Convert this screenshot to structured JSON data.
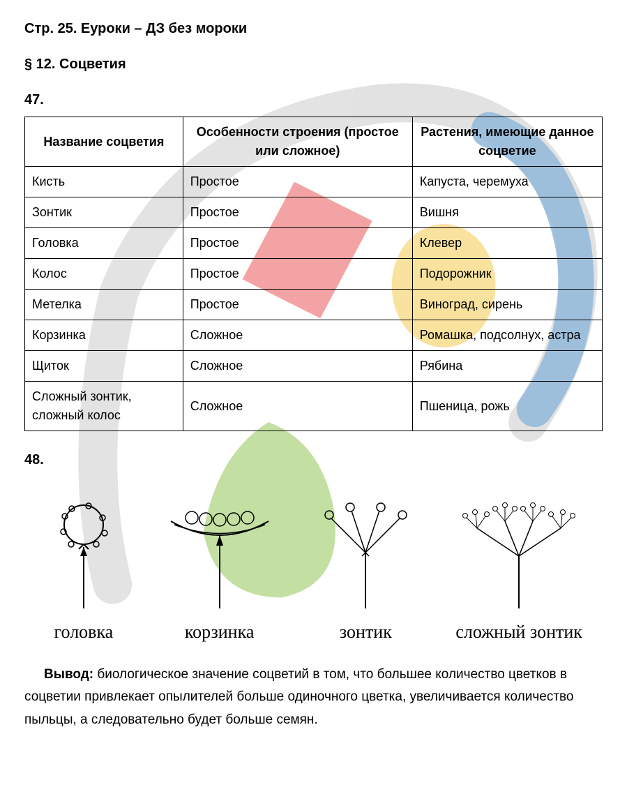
{
  "header": "Стр. 25. Еуроки – ДЗ без мороки",
  "section_title": "§ 12. Соцветия",
  "exercise_47": {
    "number": "47.",
    "table": {
      "columns": [
        "Название соцветия",
        "Особенности строения (простое или сложное)",
        "Растения, имеющие данное соцветие"
      ],
      "rows": [
        [
          "Кисть",
          "Простое",
          "Капуста, черемуха"
        ],
        [
          "Зонтик",
          "Простое",
          "Вишня"
        ],
        [
          "Головка",
          "Простое",
          "Клевер"
        ],
        [
          "Колос",
          "Простое",
          "Подорожник"
        ],
        [
          "Метелка",
          "Простое",
          "Виноград, сирень"
        ],
        [
          "Корзинка",
          "Сложное",
          "Ромашка, подсолнух, астра"
        ],
        [
          "Щиток",
          "Сложное",
          "Рябина"
        ],
        [
          "Сложный зонтик, сложный колос",
          "Сложное",
          "Пшеница, рожь"
        ]
      ]
    }
  },
  "exercise_48": {
    "number": "48.",
    "diagrams": [
      {
        "label": "головка"
      },
      {
        "label": "корзинка"
      },
      {
        "label": "зонтик"
      },
      {
        "label": "сложный зонтик"
      }
    ]
  },
  "conclusion": {
    "label": "Вывод:",
    "text": " биологическое значение соцветий в том, что большее количество цветков в соцветии привлекает опылителей больше одиночного цветка, увеличивается количество пыльцы, а следовательно будет больше семян."
  },
  "watermark_colors": {
    "red": "#e94b4b",
    "yellow": "#f5c842",
    "green": "#8bc34a",
    "blue": "#4a8bc3",
    "gray": "#d0d0d0"
  }
}
